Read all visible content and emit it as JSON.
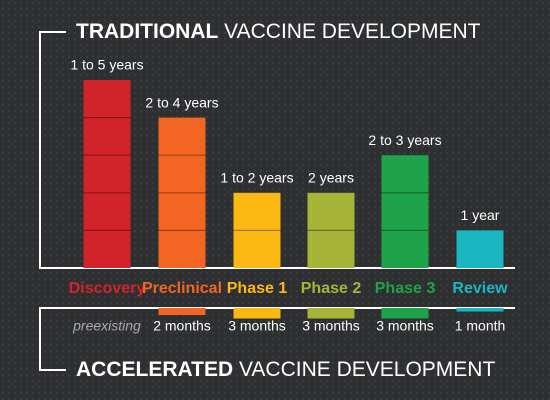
{
  "chart_data": {
    "type": "bar",
    "title": {
      "emphasis": "TRADITIONAL",
      "text": "VACCINE DEVELOPMENT"
    },
    "subtitle": {
      "emphasis": "ACCELERATED",
      "text": "VACCINE DEVELOPMENT"
    },
    "categories": [
      "Discovery",
      "Preclinical",
      "Phase 1",
      "Phase 2",
      "Phase 3",
      "Review"
    ],
    "colors": [
      "#d2232a",
      "#f26522",
      "#fdb913",
      "#a6b538",
      "#1ea24a",
      "#1ab7c3"
    ],
    "ylim": [
      0,
      5
    ],
    "series": [
      {
        "values": [
          5,
          4,
          2,
          2,
          3,
          1
        ],
        "value_labels": [
          "1 to 5 years",
          "2 to 4 years",
          "1 to 2 years",
          "2 years",
          "2 to 3 years",
          "1 year"
        ]
      },
      {
        "values": [
          null,
          2,
          3,
          3,
          3,
          1
        ],
        "value_labels": [
          "preexisting",
          "2 months",
          "3 months",
          "3 months",
          "3 months",
          "1 month"
        ]
      }
    ]
  }
}
